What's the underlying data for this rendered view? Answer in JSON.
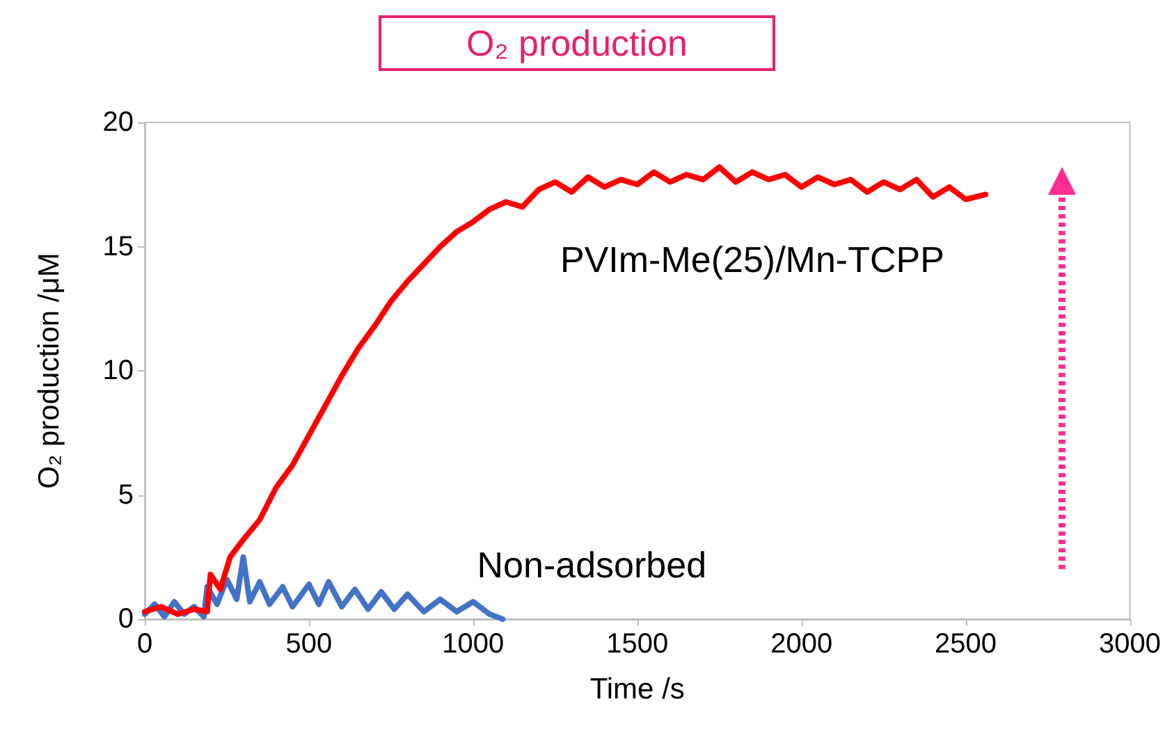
{
  "chart_data": {
    "type": "line",
    "title": "O₂ production",
    "xlabel": "Time /s",
    "ylabel": "O₂ production /μM",
    "xlim": [
      0,
      3000
    ],
    "xticks": [
      0,
      500,
      1000,
      1500,
      2000,
      2500,
      3000
    ],
    "ylim": [
      0,
      20
    ],
    "yticks": [
      0,
      5,
      10,
      15,
      20
    ],
    "grid": false,
    "legend": false,
    "marker": "none",
    "line_style": "solid",
    "series": [
      {
        "name": "PVIm-Me(25)/Mn-TCPP",
        "color": "#ff0000",
        "x": [
          0,
          50,
          100,
          150,
          190,
          200,
          230,
          260,
          300,
          350,
          400,
          450,
          500,
          550,
          600,
          650,
          700,
          750,
          800,
          850,
          900,
          950,
          1000,
          1050,
          1100,
          1150,
          1200,
          1250,
          1300,
          1350,
          1400,
          1450,
          1500,
          1550,
          1600,
          1650,
          1700,
          1750,
          1800,
          1850,
          1900,
          1950,
          2000,
          2050,
          2100,
          2150,
          2200,
          2250,
          2300,
          2350,
          2400,
          2450,
          2500,
          2560
        ],
        "values": [
          0.3,
          0.5,
          0.2,
          0.4,
          0.3,
          1.8,
          1.2,
          2.5,
          3.2,
          4.0,
          5.3,
          6.2,
          7.4,
          8.6,
          9.8,
          10.9,
          11.8,
          12.8,
          13.6,
          14.3,
          15.0,
          15.6,
          16.0,
          16.5,
          16.8,
          16.6,
          17.3,
          17.6,
          17.2,
          17.8,
          17.4,
          17.7,
          17.5,
          18.0,
          17.6,
          17.9,
          17.7,
          18.2,
          17.6,
          18.0,
          17.7,
          17.9,
          17.4,
          17.8,
          17.5,
          17.7,
          17.2,
          17.6,
          17.3,
          17.7,
          17.0,
          17.4,
          16.9,
          17.1
        ]
      },
      {
        "name": "Non-adsorbed",
        "color": "#4472c4",
        "x": [
          0,
          30,
          60,
          90,
          120,
          150,
          180,
          190,
          220,
          250,
          280,
          300,
          320,
          350,
          380,
          420,
          450,
          500,
          530,
          560,
          600,
          640,
          680,
          720,
          760,
          800,
          850,
          900,
          950,
          1000,
          1050,
          1090
        ],
        "values": [
          0.2,
          0.6,
          0.1,
          0.7,
          0.2,
          0.5,
          0.1,
          1.3,
          0.6,
          1.6,
          0.8,
          2.5,
          0.7,
          1.5,
          0.6,
          1.3,
          0.5,
          1.4,
          0.6,
          1.5,
          0.5,
          1.2,
          0.4,
          1.1,
          0.4,
          1.0,
          0.3,
          0.8,
          0.3,
          0.7,
          0.2,
          0.0
        ]
      }
    ]
  }
}
